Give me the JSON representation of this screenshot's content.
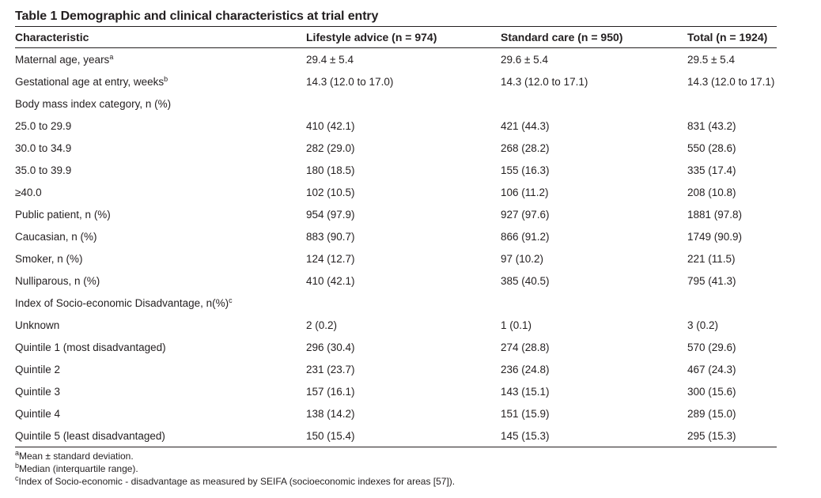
{
  "title": "Table 1 Demographic and clinical characteristics at trial entry",
  "headers": [
    "Characteristic",
    "Lifestyle advice (n = 974)",
    "Standard care (n = 950)",
    "Total (n = 1924)"
  ],
  "rows": [
    {
      "label": "Maternal age, years",
      "sup": "a",
      "values": [
        "29.4 ± 5.4",
        "29.6 ± 5.4",
        "29.5 ± 5.4"
      ]
    },
    {
      "label": "Gestational age at entry, weeks",
      "sup": "b",
      "values": [
        "14.3 (12.0 to 17.0)",
        "14.3 (12.0 to 17.1)",
        "14.3 (12.0 to 17.1)"
      ]
    },
    {
      "label": "Body mass index category, n (%)",
      "sup": "",
      "values": [
        "",
        "",
        ""
      ]
    },
    {
      "label": "25.0 to 29.9",
      "sup": "",
      "values": [
        "410 (42.1)",
        "421 (44.3)",
        "831 (43.2)"
      ]
    },
    {
      "label": "30.0 to 34.9",
      "sup": "",
      "values": [
        "282 (29.0)",
        "268 (28.2)",
        "550 (28.6)"
      ]
    },
    {
      "label": "35.0 to 39.9",
      "sup": "",
      "values": [
        "180 (18.5)",
        "155 (16.3)",
        "335 (17.4)"
      ]
    },
    {
      "label": "≥40.0",
      "sup": "",
      "values": [
        "102 (10.5)",
        "106 (11.2)",
        "208 (10.8)"
      ]
    },
    {
      "label": "Public patient, n (%)",
      "sup": "",
      "values": [
        "954 (97.9)",
        "927 (97.6)",
        "1881 (97.8)"
      ]
    },
    {
      "label": "Caucasian, n (%)",
      "sup": "",
      "values": [
        "883 (90.7)",
        "866 (91.2)",
        "1749 (90.9)"
      ]
    },
    {
      "label": "Smoker, n (%)",
      "sup": "",
      "values": [
        "124 (12.7)",
        "97 (10.2)",
        "221 (11.5)"
      ]
    },
    {
      "label": "Nulliparous, n (%)",
      "sup": "",
      "values": [
        "410 (42.1)",
        "385 (40.5)",
        "795 (41.3)"
      ]
    },
    {
      "label": "Index of Socio-economic Disadvantage, n(%)",
      "sup": "c",
      "values": [
        "",
        "",
        ""
      ]
    },
    {
      "label": "Unknown",
      "sup": "",
      "values": [
        "2 (0.2)",
        "1 (0.1)",
        "3 (0.2)"
      ]
    },
    {
      "label": "Quintile 1 (most disadvantaged)",
      "sup": "",
      "values": [
        "296 (30.4)",
        "274 (28.8)",
        "570 (29.6)"
      ]
    },
    {
      "label": "Quintile 2",
      "sup": "",
      "values": [
        "231 (23.7)",
        "236 (24.8)",
        "467 (24.3)"
      ]
    },
    {
      "label": "Quintile 3",
      "sup": "",
      "values": [
        "157 (16.1)",
        "143 (15.1)",
        "300 (15.6)"
      ]
    },
    {
      "label": "Quintile 4",
      "sup": "",
      "values": [
        "138 (14.2)",
        "151 (15.9)",
        "289 (15.0)"
      ]
    },
    {
      "label": "Quintile 5 (least disadvantaged)",
      "sup": "",
      "values": [
        "150 (15.4)",
        "145 (15.3)",
        "295 (15.3)"
      ]
    }
  ],
  "footnotes": [
    {
      "mark": "a",
      "text": "Mean ± standard deviation."
    },
    {
      "mark": "b",
      "text": "Median (interquartile range)."
    },
    {
      "mark": "c",
      "text": "Index of Socio-economic - disadvantage as measured by SEIFA (socioeconomic indexes for areas [57])."
    }
  ]
}
